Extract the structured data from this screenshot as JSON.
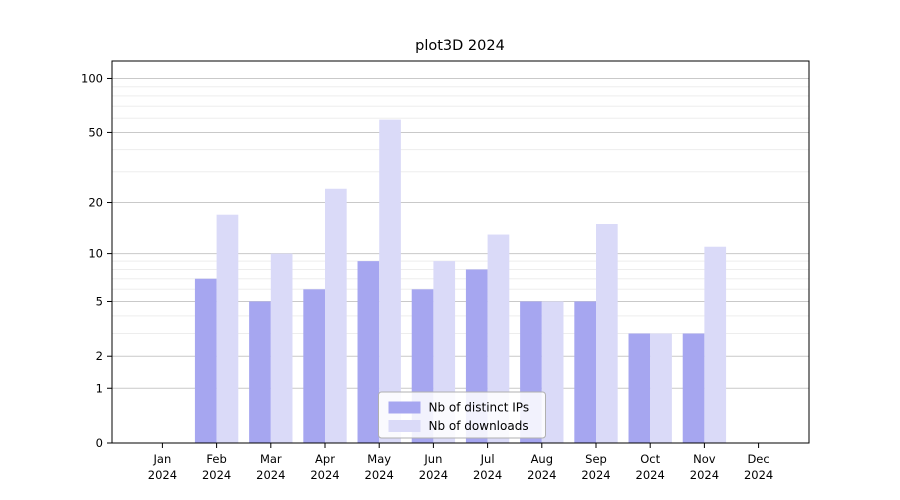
{
  "title": "plot3D 2024",
  "chart_data": {
    "type": "bar",
    "categories": [
      "Jan",
      "Feb",
      "Mar",
      "Apr",
      "May",
      "Jun",
      "Jul",
      "Aug",
      "Sep",
      "Oct",
      "Nov",
      "Dec"
    ],
    "year_label": "2024",
    "series": [
      {
        "name": "Nb of distinct IPs",
        "color": "#a6a6f0",
        "values": [
          0,
          7,
          5,
          6,
          9,
          6,
          8,
          5,
          5,
          3,
          3,
          0
        ]
      },
      {
        "name": "Nb of downloads",
        "color": "#dadaf8",
        "values": [
          0,
          17,
          10,
          24,
          59,
          9,
          13,
          5,
          15,
          3,
          11,
          0
        ]
      }
    ],
    "yscale": "log1p",
    "ylim": [
      0,
      125
    ],
    "yticks": [
      0,
      1,
      2,
      5,
      10,
      20,
      50,
      100
    ],
    "minor_yticks": [
      3,
      4,
      6,
      7,
      8,
      9,
      30,
      40,
      60,
      70,
      80,
      90
    ],
    "grid": true,
    "legend_position": "lower center"
  },
  "colors": {
    "major_grid": "#c9c9c9",
    "minor_grid": "#ededed",
    "spine": "#000000",
    "legend_border": "#b0b0b0",
    "legend_bg": "#ffffff"
  }
}
